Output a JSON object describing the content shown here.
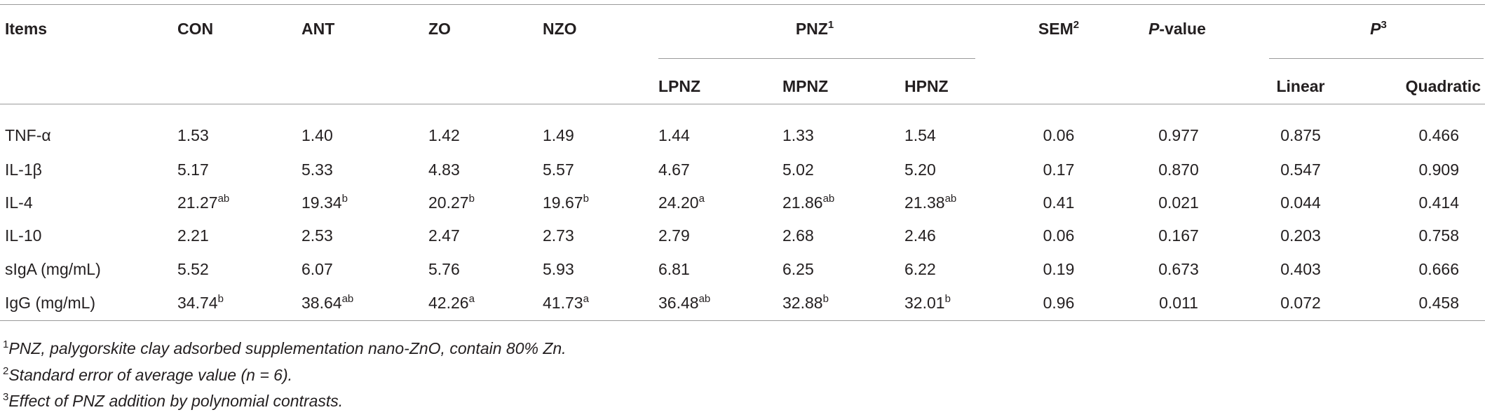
{
  "header": {
    "row1": [
      {
        "text": "Items"
      },
      {
        "text": "CON"
      },
      {
        "text": "ANT"
      },
      {
        "text": "ZO"
      },
      {
        "text": "NZO"
      },
      {
        "text": "PNZ",
        "sup": "1"
      },
      {
        "text": "SEM",
        "sup": "2"
      },
      {
        "italic": "P",
        "text": "-value"
      },
      {
        "italic": "P",
        "sup": "3"
      }
    ],
    "row2": [
      "LPNZ",
      "MPNZ",
      "HPNZ",
      "Linear",
      "Quadratic"
    ]
  },
  "rows": [
    {
      "item": "TNF-α",
      "cells": [
        "1.53",
        "1.40",
        "1.42",
        "1.49",
        "1.44",
        "1.33",
        "1.54",
        "0.06",
        "0.977",
        "0.875",
        "0.466"
      ]
    },
    {
      "item": "IL-1β",
      "cells": [
        "5.17",
        "5.33",
        "4.83",
        "5.57",
        "4.67",
        "5.02",
        "5.20",
        "0.17",
        "0.870",
        "0.547",
        "0.909"
      ]
    },
    {
      "item": "IL-4",
      "cells": [
        {
          "v": "21.27",
          "sup": "ab"
        },
        {
          "v": "19.34",
          "sup": "b"
        },
        {
          "v": "20.27",
          "sup": "b"
        },
        {
          "v": "19.67",
          "sup": "b"
        },
        {
          "v": "24.20",
          "sup": "a"
        },
        {
          "v": "21.86",
          "sup": "ab"
        },
        {
          "v": "21.38",
          "sup": "ab"
        },
        "0.41",
        "0.021",
        "0.044",
        "0.414"
      ]
    },
    {
      "item": "IL-10",
      "cells": [
        "2.21",
        "2.53",
        "2.47",
        "2.73",
        "2.79",
        "2.68",
        "2.46",
        "0.06",
        "0.167",
        "0.203",
        "0.758"
      ]
    },
    {
      "item": "sIgA (mg/mL)",
      "cells": [
        "5.52",
        "6.07",
        "5.76",
        "5.93",
        "6.81",
        "6.25",
        "6.22",
        "0.19",
        "0.673",
        "0.403",
        "0.666"
      ]
    },
    {
      "item": "IgG (mg/mL)",
      "cells": [
        {
          "v": "34.74",
          "sup": "b"
        },
        {
          "v": "38.64",
          "sup": "ab"
        },
        {
          "v": "42.26",
          "sup": "a"
        },
        {
          "v": "41.73",
          "sup": "a"
        },
        {
          "v": "36.48",
          "sup": "ab"
        },
        {
          "v": "32.88",
          "sup": "b"
        },
        {
          "v": "32.01",
          "sup": "b"
        },
        "0.96",
        "0.011",
        "0.072",
        "0.458"
      ]
    }
  ],
  "footnotes": [
    {
      "sup": "1",
      "text": "PNZ, palygorskite clay adsorbed supplementation nano-ZnO, contain 80% Zn."
    },
    {
      "sup": "2",
      "text": "Standard error of average value (n = 6)."
    },
    {
      "sup": "3",
      "text": "Effect of PNZ addition by polynomial contrasts."
    }
  ]
}
